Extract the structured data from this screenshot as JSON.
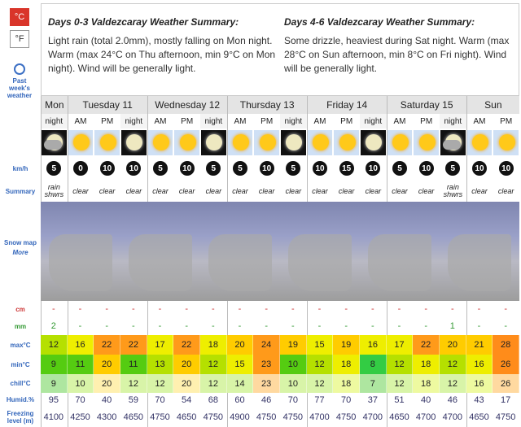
{
  "units": {
    "celsius": "°C",
    "fahrenheit": "°F"
  },
  "past_weather": "Past week's weather",
  "summaries": [
    {
      "title": "Days 0-3 Valdezcaray Weather Summary:",
      "text": "Light rain (total 2.0mm), mostly falling on Mon night. Warm (max 24°C on Thu afternoon, min 9°C on Mon night). Wind will be generally light."
    },
    {
      "title": "Days 4-6 Valdezcaray Weather Summary:",
      "text": "Some drizzle, heaviest during Sat night. Warm (max 28°C on Sun afternoon, min 8°C on Fri night). Wind will be generally light."
    }
  ],
  "days": [
    {
      "name": "Mon",
      "periods": [
        "night"
      ]
    },
    {
      "name": "Tuesday 11",
      "periods": [
        "AM",
        "PM",
        "night"
      ]
    },
    {
      "name": "Wednesday 12",
      "periods": [
        "AM",
        "PM",
        "night"
      ]
    },
    {
      "name": "Thursday 13",
      "periods": [
        "AM",
        "PM",
        "night"
      ]
    },
    {
      "name": "Friday 14",
      "periods": [
        "AM",
        "PM",
        "night"
      ]
    },
    {
      "name": "Saturday 15",
      "periods": [
        "AM",
        "PM",
        "night"
      ]
    },
    {
      "name": "Sun",
      "periods": [
        "AM",
        "PM"
      ]
    }
  ],
  "row_labels": {
    "wind": "km/h",
    "summary": "Summary",
    "snow_map": "Snow map",
    "more": "More",
    "snow": "cm",
    "rain": "mm",
    "max": "max°C",
    "min": "min°C",
    "chill": "chill°C",
    "humidity": "Humid.%",
    "freezing": "Freezing level (m)"
  },
  "rows": {
    "wind": [
      5,
      0,
      10,
      10,
      5,
      10,
      5,
      5,
      10,
      5,
      10,
      15,
      10,
      5,
      10,
      5,
      10,
      10
    ],
    "summary": [
      "rain shwrs",
      "clear",
      "clear",
      "clear",
      "clear",
      "clear",
      "clear",
      "clear",
      "clear",
      "clear",
      "clear",
      "clear",
      "clear",
      "clear",
      "clear",
      "rain shwrs",
      "clear",
      "clear"
    ],
    "snow": [
      "-",
      "-",
      "-",
      "-",
      "-",
      "-",
      "-",
      "-",
      "-",
      "-",
      "-",
      "-",
      "-",
      "-",
      "-",
      "-",
      "-",
      "-"
    ],
    "rain": [
      2,
      "-",
      "-",
      "-",
      "-",
      "-",
      "-",
      "-",
      "-",
      "-",
      "-",
      "-",
      "-",
      "-",
      "-",
      1,
      "-",
      "-"
    ],
    "max": [
      12,
      16,
      22,
      22,
      17,
      22,
      18,
      20,
      24,
      19,
      15,
      19,
      16,
      17,
      22,
      20,
      21,
      28
    ],
    "min": [
      9,
      11,
      20,
      11,
      13,
      20,
      12,
      15,
      23,
      10,
      12,
      18,
      8,
      12,
      18,
      12,
      16,
      26
    ],
    "chill": [
      9,
      10,
      20,
      12,
      12,
      20,
      12,
      14,
      23,
      10,
      12,
      18,
      7,
      12,
      18,
      12,
      16,
      26
    ],
    "humidity": [
      95,
      70,
      40,
      59,
      70,
      54,
      68,
      60,
      46,
      70,
      77,
      70,
      37,
      51,
      40,
      46,
      43,
      17
    ],
    "freezing": [
      4100,
      4250,
      4300,
      4650,
      4750,
      4650,
      4750,
      4900,
      4750,
      4750,
      4700,
      4750,
      4700,
      4650,
      4700,
      4700,
      4650,
      4750
    ]
  }
}
